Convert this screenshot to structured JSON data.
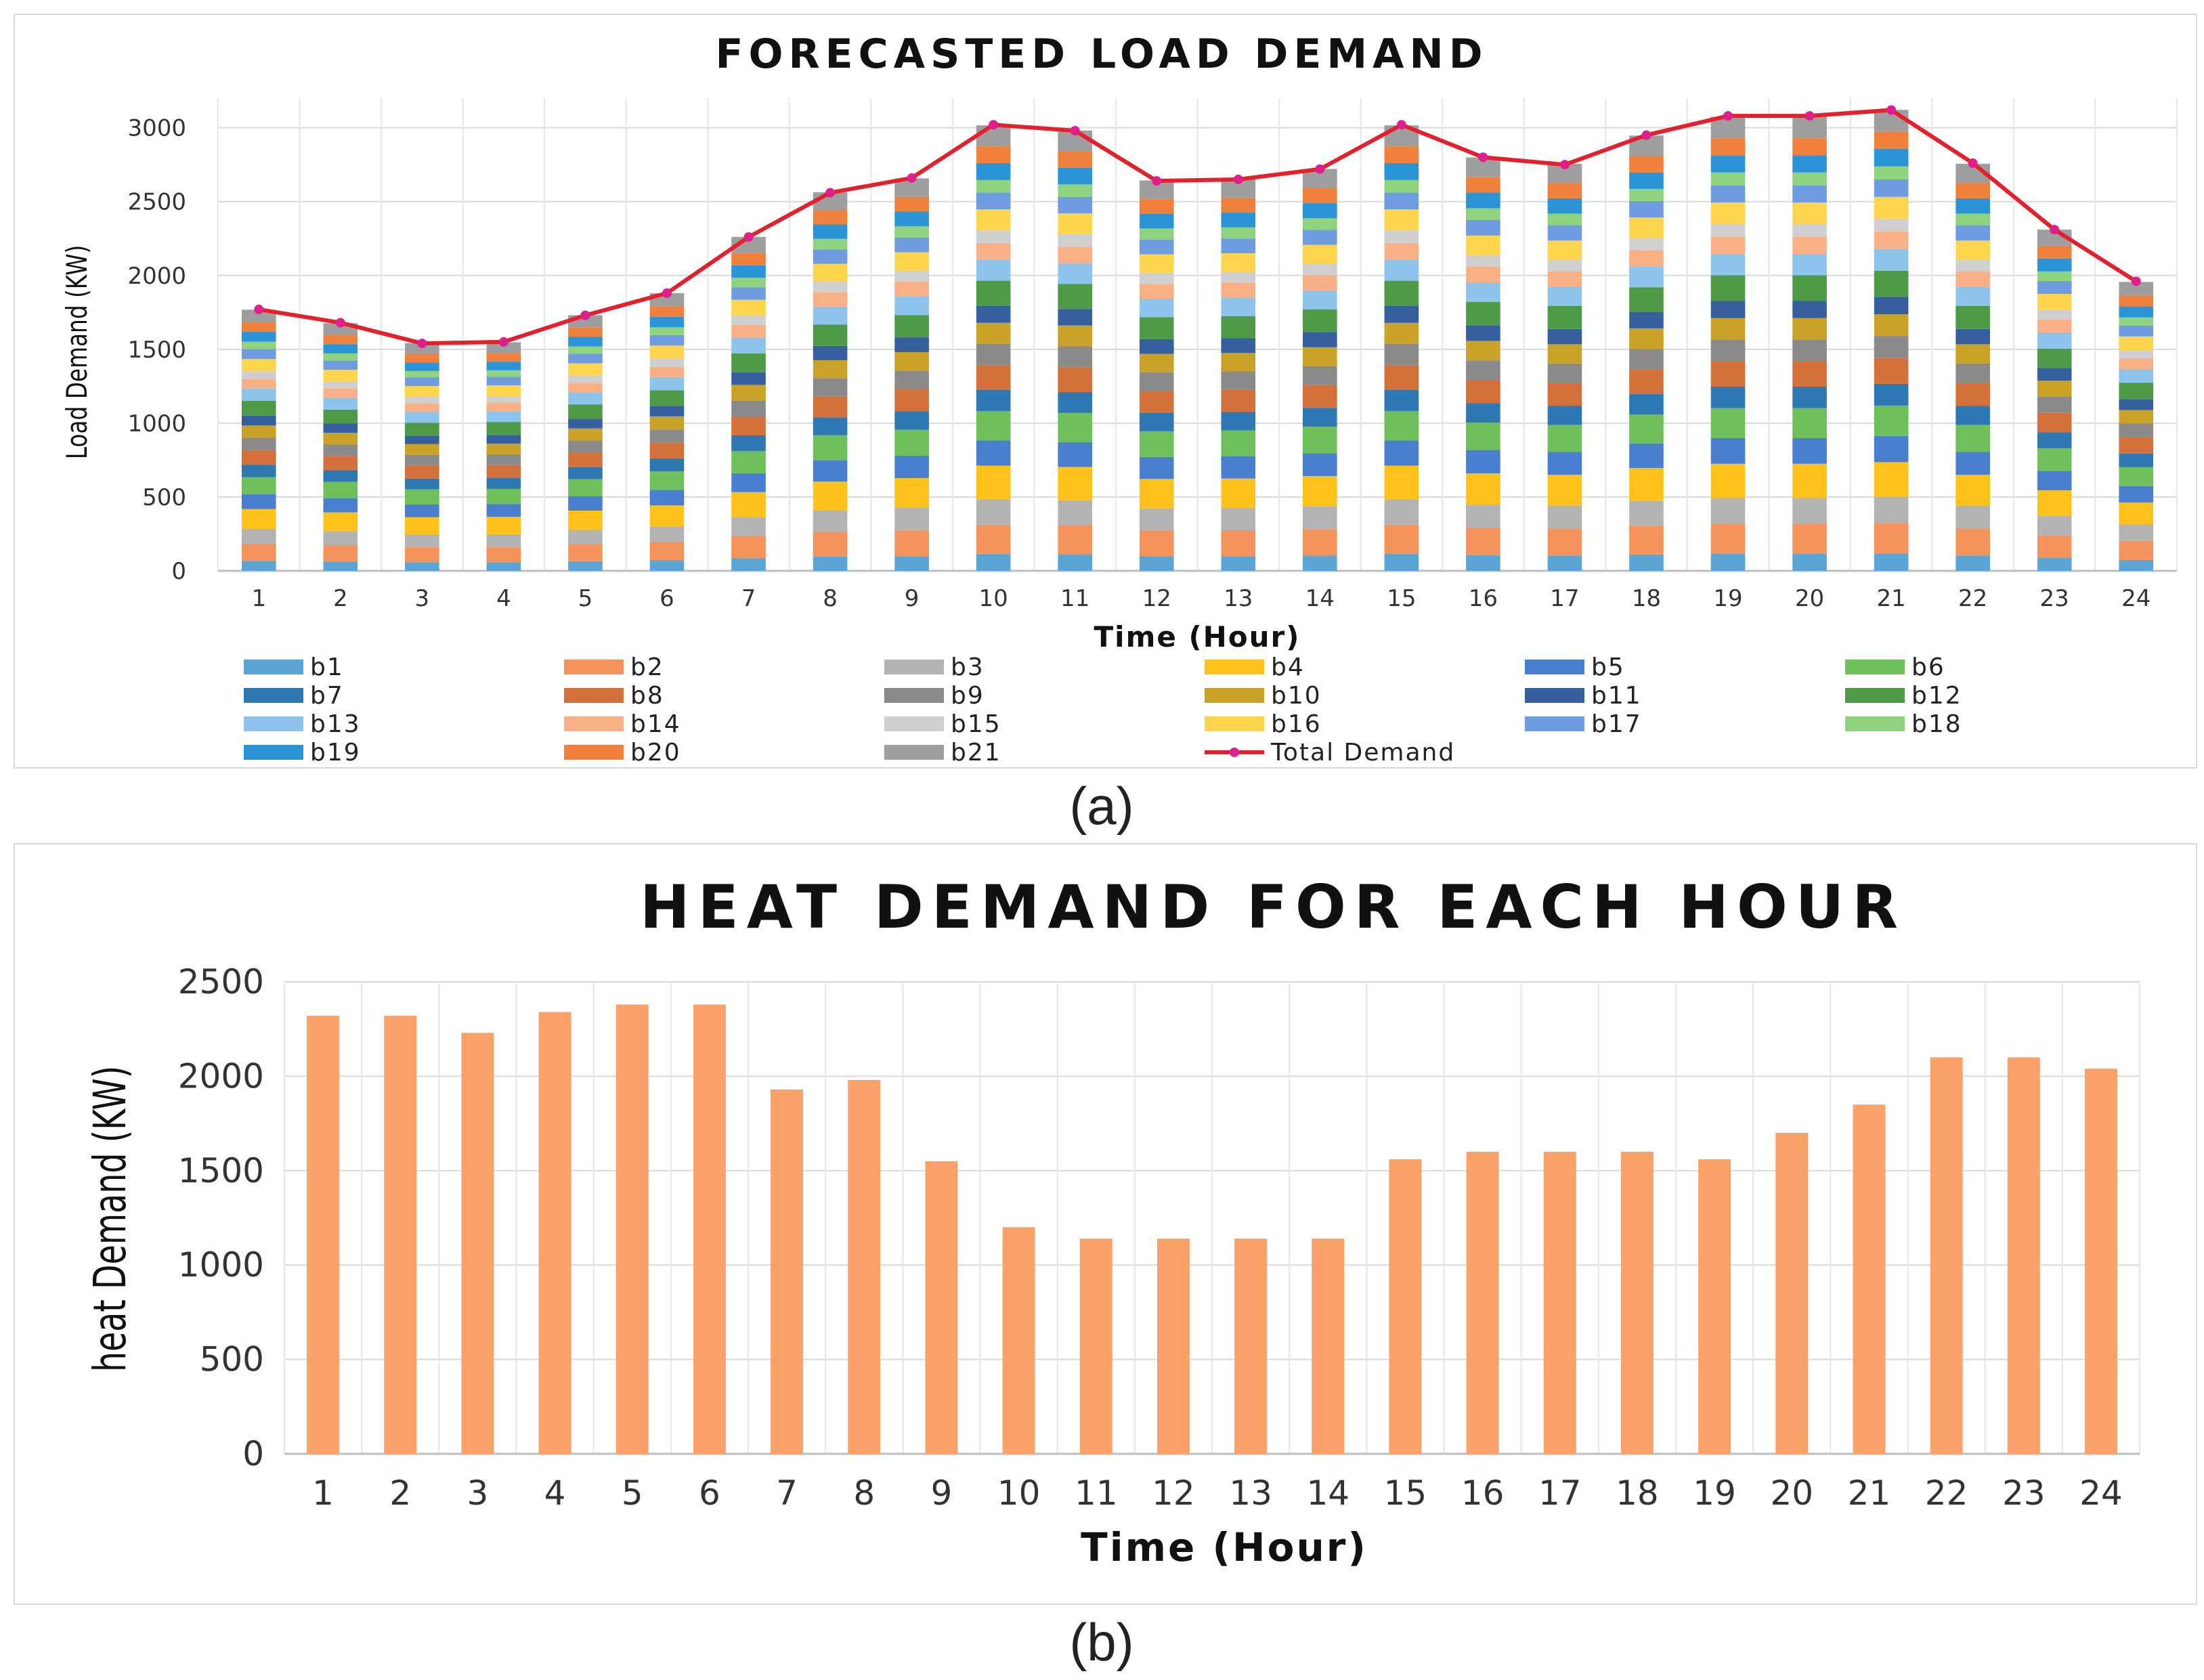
{
  "panel_labels": {
    "a": "(a)",
    "b": "(b)"
  },
  "chart_data": [
    {
      "type": "stacked-bar+line",
      "title": "FORECASTED LOAD DEMAND",
      "xlabel": "Time (Hour)",
      "ylabel": "Load Demand (KW)",
      "ylim": [
        0,
        3200
      ],
      "yticks": [
        0,
        500,
        1000,
        1500,
        2000,
        2500,
        3000
      ],
      "grid": true,
      "legend_position": "bottom",
      "categories": [
        "1",
        "2",
        "3",
        "4",
        "5",
        "6",
        "7",
        "8",
        "9",
        "10",
        "11",
        "12",
        "13",
        "14",
        "15",
        "16",
        "17",
        "18",
        "19",
        "20",
        "21",
        "22",
        "23",
        "24"
      ],
      "series_names": [
        "b1",
        "b2",
        "b3",
        "b4",
        "b5",
        "b6",
        "b7",
        "b8",
        "b9",
        "b10",
        "b11",
        "b12",
        "b13",
        "b14",
        "b15",
        "b16",
        "b17",
        "b18",
        "b19",
        "b20",
        "b21"
      ],
      "series_colors": [
        "#5aa5d6",
        "#f4945c",
        "#b3b3b3",
        "#ffc21a",
        "#4a7fd0",
        "#6fbf5b",
        "#2e78b3",
        "#d4713a",
        "#8a8a8a",
        "#c9a227",
        "#355f9e",
        "#4f9a46",
        "#8ec3ec",
        "#f9b087",
        "#cfcfcf",
        "#ffd54d",
        "#6f9be0",
        "#8fd37f",
        "#2a94d6",
        "#f0813c",
        "#9e9e9e"
      ],
      "line_series": {
        "name": "Total Demand",
        "color": "#e3202b",
        "values": [
          1770,
          1680,
          1540,
          1550,
          1730,
          1880,
          2260,
          2560,
          2660,
          3020,
          2980,
          2640,
          2650,
          2720,
          3020,
          2800,
          2750,
          2950,
          3080,
          3080,
          3120,
          2760,
          2310,
          1960
        ]
      },
      "weights": [
        0.04,
        0.07,
        0.06,
        0.08,
        0.06,
        0.07,
        0.05,
        0.06,
        0.05,
        0.05,
        0.04,
        0.06,
        0.05,
        0.04,
        0.03,
        0.05,
        0.04,
        0.03,
        0.04,
        0.04,
        0.05
      ],
      "series": []
    },
    {
      "type": "bar",
      "title": "HEAT DEMAND FOR EACH HOUR",
      "xlabel": "Time (Hour)",
      "ylabel": "heat Demand (KW)",
      "ylim": [
        0,
        2500
      ],
      "yticks": [
        0,
        500,
        1000,
        1500,
        2000,
        2500
      ],
      "grid": true,
      "color": "#f9a169",
      "categories": [
        "1",
        "2",
        "3",
        "4",
        "5",
        "6",
        "7",
        "8",
        "9",
        "10",
        "11",
        "12",
        "13",
        "14",
        "15",
        "16",
        "17",
        "18",
        "19",
        "20",
        "21",
        "22",
        "23",
        "24"
      ],
      "values": [
        2320,
        2320,
        2230,
        2340,
        2380,
        2380,
        1930,
        1980,
        1550,
        1200,
        1140,
        1140,
        1140,
        1140,
        1560,
        1600,
        1600,
        1600,
        1560,
        1700,
        1850,
        2100,
        2100,
        2040
      ]
    }
  ]
}
